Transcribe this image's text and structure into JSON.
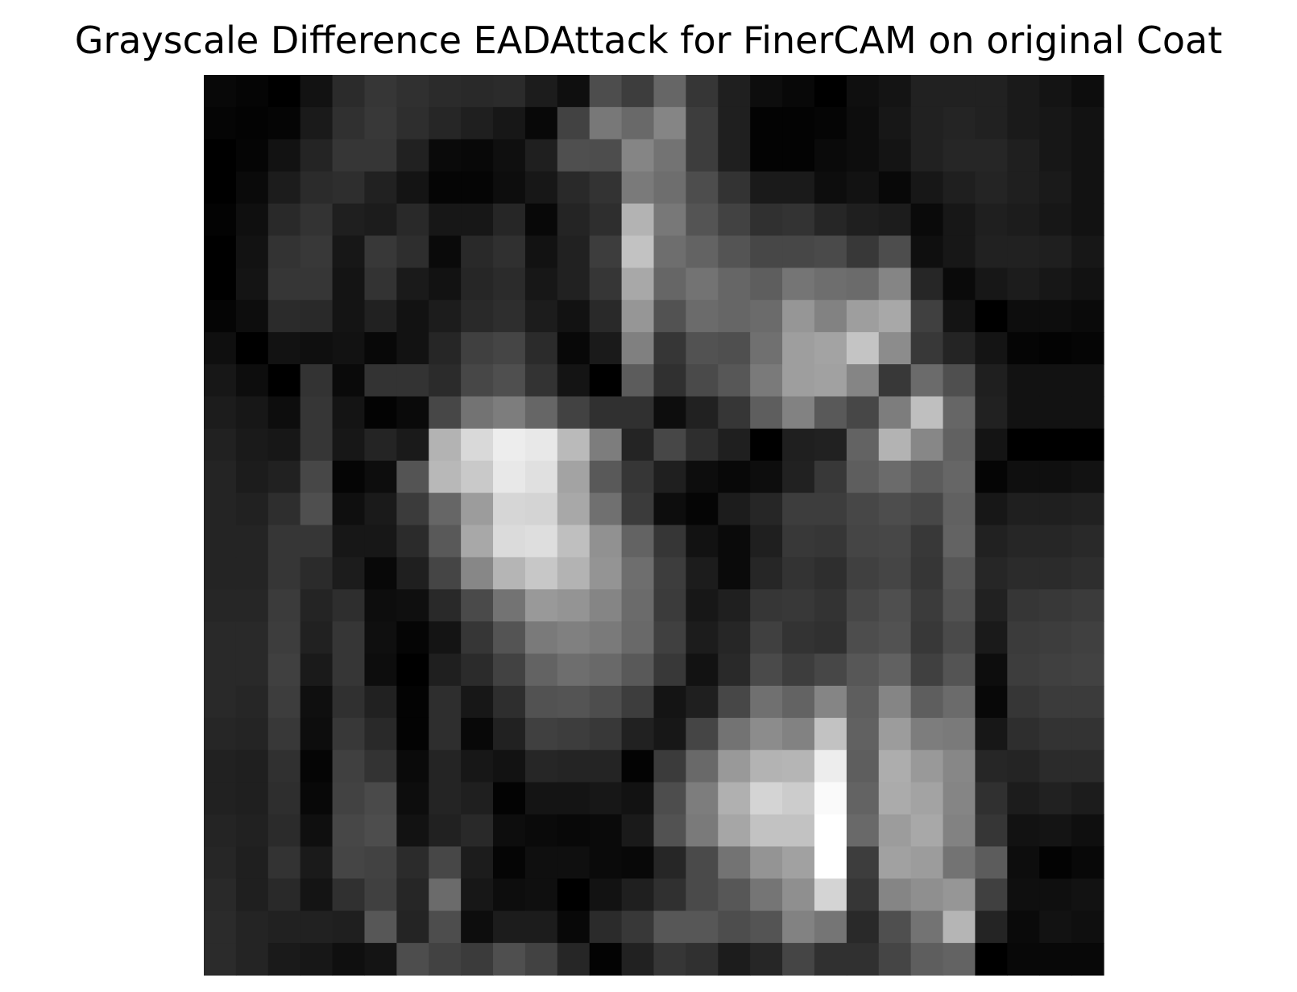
{
  "chart_data": {
    "type": "heatmap",
    "title": "Grayscale Difference EADAttack for FinerCAM on original Coat",
    "colormap": "gray",
    "axes": "off",
    "value_range": [
      0,
      1
    ],
    "rows": 28,
    "cols": 28,
    "values": [
      [
        0.03,
        0.02,
        0.0,
        0.07,
        0.17,
        0.21,
        0.19,
        0.17,
        0.16,
        0.17,
        0.11,
        0.06,
        0.3,
        0.24,
        0.4,
        0.21,
        0.12,
        0.05,
        0.03,
        0.0,
        0.06,
        0.08,
        0.13,
        0.13,
        0.13,
        0.1,
        0.08,
        0.05
      ],
      [
        0.02,
        0.01,
        0.02,
        0.1,
        0.19,
        0.22,
        0.18,
        0.15,
        0.12,
        0.09,
        0.03,
        0.26,
        0.47,
        0.41,
        0.52,
        0.24,
        0.12,
        0.01,
        0.01,
        0.02,
        0.05,
        0.09,
        0.13,
        0.14,
        0.13,
        0.1,
        0.09,
        0.07
      ],
      [
        0.0,
        0.02,
        0.07,
        0.14,
        0.21,
        0.21,
        0.13,
        0.04,
        0.03,
        0.06,
        0.12,
        0.31,
        0.3,
        0.52,
        0.45,
        0.24,
        0.12,
        0.01,
        0.01,
        0.04,
        0.05,
        0.08,
        0.13,
        0.15,
        0.15,
        0.12,
        0.09,
        0.07
      ],
      [
        0.0,
        0.04,
        0.11,
        0.17,
        0.18,
        0.13,
        0.08,
        0.02,
        0.02,
        0.05,
        0.09,
        0.16,
        0.2,
        0.48,
        0.43,
        0.3,
        0.2,
        0.1,
        0.1,
        0.05,
        0.07,
        0.03,
        0.09,
        0.12,
        0.14,
        0.12,
        0.1,
        0.07
      ],
      [
        0.01,
        0.06,
        0.16,
        0.2,
        0.12,
        0.11,
        0.16,
        0.09,
        0.09,
        0.15,
        0.03,
        0.14,
        0.18,
        0.7,
        0.47,
        0.33,
        0.26,
        0.19,
        0.2,
        0.15,
        0.12,
        0.11,
        0.04,
        0.09,
        0.12,
        0.11,
        0.09,
        0.07
      ],
      [
        0.0,
        0.07,
        0.2,
        0.22,
        0.09,
        0.22,
        0.18,
        0.04,
        0.16,
        0.19,
        0.07,
        0.13,
        0.24,
        0.76,
        0.43,
        0.39,
        0.33,
        0.28,
        0.28,
        0.29,
        0.22,
        0.3,
        0.06,
        0.09,
        0.13,
        0.13,
        0.12,
        0.09
      ],
      [
        0.0,
        0.08,
        0.21,
        0.21,
        0.08,
        0.2,
        0.1,
        0.07,
        0.15,
        0.17,
        0.09,
        0.13,
        0.21,
        0.66,
        0.4,
        0.45,
        0.4,
        0.37,
        0.46,
        0.43,
        0.42,
        0.52,
        0.15,
        0.04,
        0.09,
        0.11,
        0.09,
        0.07
      ],
      [
        0.02,
        0.05,
        0.17,
        0.16,
        0.08,
        0.13,
        0.07,
        0.11,
        0.16,
        0.18,
        0.11,
        0.07,
        0.16,
        0.59,
        0.32,
        0.42,
        0.4,
        0.42,
        0.59,
        0.51,
        0.62,
        0.66,
        0.25,
        0.08,
        0.0,
        0.05,
        0.05,
        0.04
      ],
      [
        0.06,
        0.0,
        0.07,
        0.06,
        0.07,
        0.03,
        0.07,
        0.15,
        0.25,
        0.27,
        0.17,
        0.03,
        0.1,
        0.5,
        0.21,
        0.32,
        0.31,
        0.44,
        0.62,
        0.64,
        0.77,
        0.55,
        0.22,
        0.14,
        0.08,
        0.02,
        0.01,
        0.02
      ],
      [
        0.09,
        0.05,
        0.0,
        0.2,
        0.04,
        0.2,
        0.2,
        0.17,
        0.28,
        0.31,
        0.2,
        0.08,
        0.0,
        0.36,
        0.19,
        0.29,
        0.34,
        0.48,
        0.62,
        0.63,
        0.52,
        0.22,
        0.42,
        0.31,
        0.12,
        0.07,
        0.07,
        0.07
      ],
      [
        0.11,
        0.09,
        0.05,
        0.21,
        0.08,
        0.01,
        0.04,
        0.28,
        0.45,
        0.49,
        0.4,
        0.26,
        0.19,
        0.19,
        0.05,
        0.13,
        0.21,
        0.37,
        0.51,
        0.35,
        0.28,
        0.49,
        0.75,
        0.4,
        0.13,
        0.07,
        0.07,
        0.07
      ],
      [
        0.13,
        0.1,
        0.09,
        0.21,
        0.09,
        0.14,
        0.1,
        0.7,
        0.85,
        0.93,
        0.91,
        0.73,
        0.49,
        0.14,
        0.28,
        0.18,
        0.12,
        0.0,
        0.12,
        0.13,
        0.39,
        0.7,
        0.53,
        0.38,
        0.08,
        0.0,
        0.0,
        0.0
      ],
      [
        0.14,
        0.11,
        0.13,
        0.28,
        0.02,
        0.05,
        0.33,
        0.72,
        0.79,
        0.91,
        0.88,
        0.64,
        0.35,
        0.21,
        0.12,
        0.05,
        0.03,
        0.05,
        0.13,
        0.22,
        0.37,
        0.42,
        0.36,
        0.4,
        0.02,
        0.06,
        0.06,
        0.07
      ],
      [
        0.14,
        0.13,
        0.18,
        0.31,
        0.06,
        0.1,
        0.23,
        0.4,
        0.61,
        0.84,
        0.83,
        0.66,
        0.44,
        0.23,
        0.05,
        0.02,
        0.11,
        0.15,
        0.24,
        0.24,
        0.28,
        0.3,
        0.28,
        0.38,
        0.09,
        0.12,
        0.12,
        0.13
      ],
      [
        0.14,
        0.14,
        0.21,
        0.21,
        0.09,
        0.09,
        0.17,
        0.35,
        0.66,
        0.86,
        0.87,
        0.75,
        0.57,
        0.39,
        0.21,
        0.07,
        0.04,
        0.12,
        0.22,
        0.21,
        0.27,
        0.28,
        0.22,
        0.39,
        0.13,
        0.15,
        0.15,
        0.16
      ],
      [
        0.14,
        0.14,
        0.21,
        0.17,
        0.11,
        0.03,
        0.12,
        0.27,
        0.53,
        0.71,
        0.78,
        0.7,
        0.58,
        0.43,
        0.24,
        0.11,
        0.04,
        0.15,
        0.2,
        0.18,
        0.25,
        0.27,
        0.21,
        0.34,
        0.15,
        0.17,
        0.17,
        0.18
      ],
      [
        0.15,
        0.15,
        0.23,
        0.14,
        0.18,
        0.05,
        0.06,
        0.16,
        0.29,
        0.45,
        0.6,
        0.58,
        0.52,
        0.42,
        0.23,
        0.09,
        0.12,
        0.21,
        0.22,
        0.2,
        0.28,
        0.31,
        0.23,
        0.32,
        0.13,
        0.21,
        0.22,
        0.23
      ],
      [
        0.16,
        0.16,
        0.24,
        0.13,
        0.21,
        0.06,
        0.02,
        0.08,
        0.21,
        0.33,
        0.48,
        0.5,
        0.48,
        0.41,
        0.25,
        0.11,
        0.15,
        0.25,
        0.2,
        0.19,
        0.3,
        0.32,
        0.22,
        0.29,
        0.1,
        0.23,
        0.24,
        0.25
      ],
      [
        0.16,
        0.16,
        0.25,
        0.1,
        0.21,
        0.05,
        0.0,
        0.12,
        0.17,
        0.26,
        0.39,
        0.43,
        0.41,
        0.35,
        0.22,
        0.07,
        0.16,
        0.29,
        0.24,
        0.28,
        0.34,
        0.38,
        0.25,
        0.33,
        0.05,
        0.24,
        0.25,
        0.26
      ],
      [
        0.16,
        0.15,
        0.24,
        0.06,
        0.19,
        0.13,
        0.01,
        0.18,
        0.09,
        0.18,
        0.32,
        0.33,
        0.3,
        0.24,
        0.08,
        0.12,
        0.28,
        0.44,
        0.39,
        0.52,
        0.37,
        0.52,
        0.37,
        0.42,
        0.03,
        0.21,
        0.23,
        0.23
      ],
      [
        0.15,
        0.14,
        0.22,
        0.05,
        0.22,
        0.16,
        0.01,
        0.18,
        0.03,
        0.13,
        0.25,
        0.24,
        0.22,
        0.13,
        0.09,
        0.27,
        0.45,
        0.55,
        0.51,
        0.76,
        0.38,
        0.61,
        0.49,
        0.48,
        0.09,
        0.18,
        0.2,
        0.2
      ],
      [
        0.13,
        0.12,
        0.19,
        0.02,
        0.25,
        0.2,
        0.04,
        0.14,
        0.09,
        0.07,
        0.15,
        0.14,
        0.14,
        0.01,
        0.23,
        0.41,
        0.6,
        0.7,
        0.71,
        0.93,
        0.37,
        0.68,
        0.6,
        0.53,
        0.15,
        0.14,
        0.17,
        0.17
      ],
      [
        0.13,
        0.12,
        0.18,
        0.03,
        0.26,
        0.29,
        0.05,
        0.14,
        0.12,
        0.01,
        0.08,
        0.08,
        0.09,
        0.07,
        0.3,
        0.49,
        0.69,
        0.83,
        0.8,
        0.98,
        0.39,
        0.67,
        0.64,
        0.52,
        0.19,
        0.11,
        0.13,
        0.11
      ],
      [
        0.14,
        0.13,
        0.17,
        0.06,
        0.28,
        0.3,
        0.07,
        0.13,
        0.16,
        0.05,
        0.04,
        0.03,
        0.04,
        0.1,
        0.32,
        0.48,
        0.65,
        0.76,
        0.76,
        1.0,
        0.41,
        0.61,
        0.66,
        0.51,
        0.21,
        0.07,
        0.08,
        0.06
      ],
      [
        0.15,
        0.12,
        0.2,
        0.1,
        0.27,
        0.26,
        0.17,
        0.28,
        0.11,
        0.02,
        0.06,
        0.06,
        0.04,
        0.03,
        0.15,
        0.29,
        0.45,
        0.58,
        0.63,
        1.0,
        0.24,
        0.63,
        0.61,
        0.45,
        0.36,
        0.05,
        0.01,
        0.03
      ],
      [
        0.16,
        0.12,
        0.16,
        0.08,
        0.19,
        0.25,
        0.15,
        0.42,
        0.09,
        0.05,
        0.06,
        0.0,
        0.07,
        0.12,
        0.19,
        0.29,
        0.34,
        0.46,
        0.56,
        0.83,
        0.21,
        0.52,
        0.56,
        0.59,
        0.25,
        0.06,
        0.06,
        0.07
      ],
      [
        0.17,
        0.14,
        0.13,
        0.13,
        0.12,
        0.34,
        0.14,
        0.3,
        0.05,
        0.11,
        0.11,
        0.03,
        0.17,
        0.22,
        0.34,
        0.34,
        0.3,
        0.33,
        0.51,
        0.46,
        0.16,
        0.31,
        0.45,
        0.71,
        0.14,
        0.04,
        0.07,
        0.06
      ],
      [
        0.17,
        0.14,
        0.1,
        0.09,
        0.06,
        0.08,
        0.3,
        0.26,
        0.23,
        0.31,
        0.26,
        0.15,
        0.01,
        0.13,
        0.21,
        0.19,
        0.11,
        0.15,
        0.27,
        0.19,
        0.19,
        0.27,
        0.37,
        0.39,
        0.0,
        0.03,
        0.03,
        0.03
      ]
    ]
  }
}
